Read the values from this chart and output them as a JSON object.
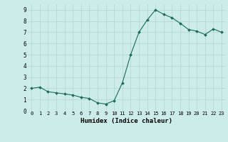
{
  "x": [
    0,
    1,
    2,
    3,
    4,
    5,
    6,
    7,
    8,
    9,
    10,
    11,
    12,
    13,
    14,
    15,
    16,
    17,
    18,
    19,
    20,
    21,
    22,
    23
  ],
  "y": [
    2.0,
    2.1,
    1.7,
    1.6,
    1.5,
    1.4,
    1.2,
    1.1,
    0.7,
    0.6,
    0.9,
    2.5,
    5.0,
    7.0,
    8.1,
    9.0,
    8.6,
    8.3,
    7.8,
    7.25,
    7.1,
    6.8,
    7.3,
    7.0
  ],
  "xlabel": "Humidex (Indice chaleur)",
  "xlim": [
    -0.5,
    23.5
  ],
  "ylim": [
    0,
    9.5
  ],
  "bg_color": "#ccecea",
  "grid_color_major": "#b8d8d6",
  "grid_color_minor": "#d4ecea",
  "line_color": "#1a6b5a",
  "marker_color": "#1a6b5a",
  "yticks": [
    0,
    1,
    2,
    3,
    4,
    5,
    6,
    7,
    8,
    9
  ],
  "xticks": [
    0,
    1,
    2,
    3,
    4,
    5,
    6,
    7,
    8,
    9,
    10,
    11,
    12,
    13,
    14,
    15,
    16,
    17,
    18,
    19,
    20,
    21,
    22,
    23
  ],
  "xtick_labels": [
    "0",
    "1",
    "2",
    "3",
    "4",
    "5",
    "6",
    "7",
    "8",
    "9",
    "10",
    "11",
    "12",
    "13",
    "14",
    "15",
    "16",
    "17",
    "18",
    "19",
    "20",
    "21",
    "22",
    "23"
  ]
}
